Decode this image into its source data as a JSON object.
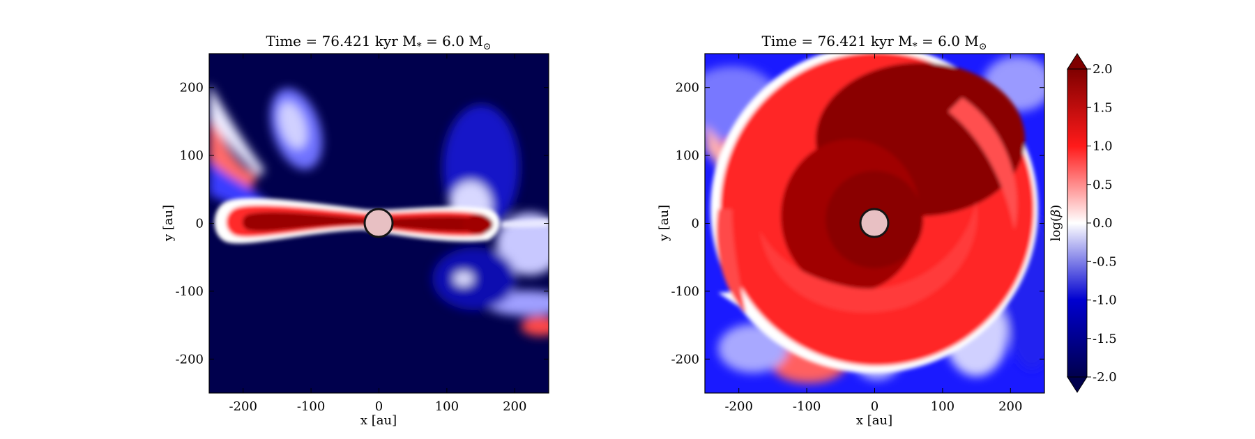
{
  "chart_data": [
    {
      "type": "heatmap",
      "title": "Time = 76.421 kyr    M$_*$ = 6.0 M$_\\odot$",
      "title_text": "Time = 76.421 kyr    M",
      "title_star": "*",
      "title_eq": " = 6.0 M",
      "title_sun": "⊙",
      "xlabel": "x [au]",
      "ylabel": "y [au]",
      "xlim": [
        -250,
        250
      ],
      "ylim": [
        -250,
        250
      ],
      "xticks": [
        -200,
        -100,
        0,
        100,
        200
      ],
      "yticks": [
        -200,
        -100,
        0,
        100,
        200
      ],
      "xtick_labels": [
        "-200",
        "-100",
        "0",
        "100",
        "200"
      ],
      "ytick_labels": [
        "-200",
        "-100",
        "0",
        "100",
        "200"
      ],
      "field": "log(beta)",
      "morphology": "edge-on disk",
      "sink_radius_au": 20
    },
    {
      "type": "heatmap",
      "title": "Time = 76.421 kyr    M$_*$ = 6.0 M$_\\odot$",
      "title_text": "Time = 76.421 kyr    M",
      "title_star": "*",
      "title_eq": " = 6.0 M",
      "title_sun": "⊙",
      "xlabel": "x [au]",
      "ylabel": "y [au]",
      "xlim": [
        -250,
        250
      ],
      "ylim": [
        -250,
        250
      ],
      "xticks": [
        -200,
        -100,
        0,
        100,
        200
      ],
      "yticks": [
        -200,
        -100,
        0,
        100,
        200
      ],
      "xtick_labels": [
        "-200",
        "-100",
        "0",
        "100",
        "200"
      ],
      "ytick_labels": [
        "-200",
        "-100",
        "0",
        "100",
        "200"
      ],
      "field": "log(beta)",
      "morphology": "face-on disk with spiral arms",
      "sink_radius_au": 20
    }
  ],
  "colorbar": {
    "label": "log(β)",
    "label_prefix": "log(",
    "label_beta": "β",
    "label_suffix": ")",
    "range": [
      -2.0,
      2.0
    ],
    "ticks": [
      2.0,
      1.5,
      1.0,
      0.5,
      0.0,
      -0.5,
      -1.0,
      -1.5,
      -2.0
    ],
    "tick_labels": [
      "2.0",
      "1.5",
      "1.0",
      "0.5",
      "0.0",
      "-0.5",
      "-1.0",
      "-1.5",
      "-2.0"
    ],
    "extend": "both",
    "colormap": "seismic",
    "colors": [
      "#00004d",
      "#0000d0",
      "#ffffff",
      "#ff1a1a",
      "#7f0000"
    ]
  }
}
